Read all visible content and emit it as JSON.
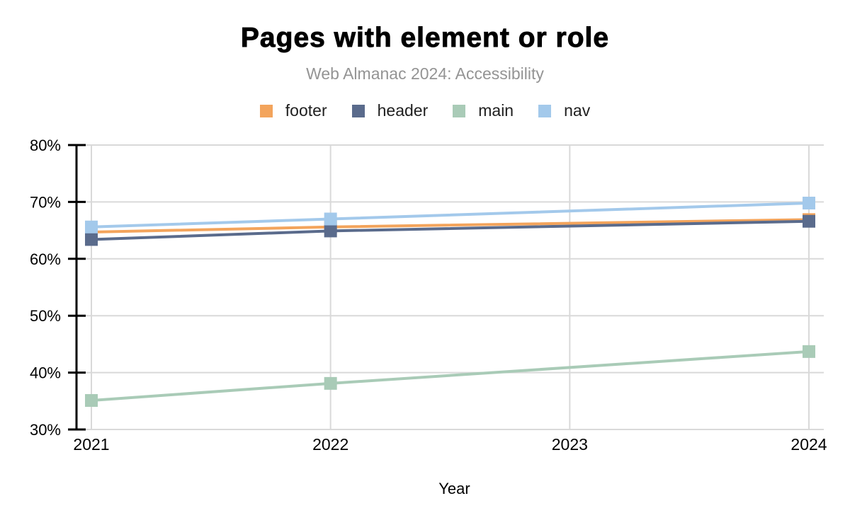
{
  "header": {
    "title": "Pages with element or role",
    "subtitle": "Web Almanac 2024: Accessibility"
  },
  "legend": {
    "items": [
      {
        "label": "footer",
        "color": "#F3A45C"
      },
      {
        "label": "header",
        "color": "#5A6B8C"
      },
      {
        "label": "main",
        "color": "#A9CBB7"
      },
      {
        "label": "nav",
        "color": "#A3C9EB"
      }
    ]
  },
  "chart_data": {
    "type": "line",
    "title": "Pages with element or role",
    "subtitle": "Web Almanac 2024: Accessibility",
    "xlabel": "Year",
    "ylabel": "",
    "x": [
      2021,
      2022,
      2024
    ],
    "x_tick_labels": [
      "2021",
      "2022",
      "2023",
      "2024"
    ],
    "xlim": [
      2021,
      2024
    ],
    "ylim": [
      30,
      80
    ],
    "y_ticks": [
      30,
      40,
      50,
      60,
      70,
      80
    ],
    "y_tick_suffix": "%",
    "grid": true,
    "legend_position": "top",
    "marker": "square",
    "note": "no data markers at 2023; lines interpolate 2022 to 2024",
    "series": [
      {
        "name": "footer",
        "color": "#F3A45C",
        "values": [
          64.7,
          65.6,
          66.9
        ]
      },
      {
        "name": "header",
        "color": "#5A6B8C",
        "values": [
          63.4,
          64.9,
          66.6
        ]
      },
      {
        "name": "main",
        "color": "#A9CBB7",
        "values": [
          35.1,
          38.1,
          43.7
        ]
      },
      {
        "name": "nav",
        "color": "#A3C9EB",
        "values": [
          65.6,
          67.0,
          69.8
        ]
      }
    ]
  },
  "style": {
    "grid_color": "#d9d9d9",
    "axis_color": "#000000",
    "text_color": "#000000",
    "subtitle_color": "#949494",
    "background": "#ffffff"
  }
}
